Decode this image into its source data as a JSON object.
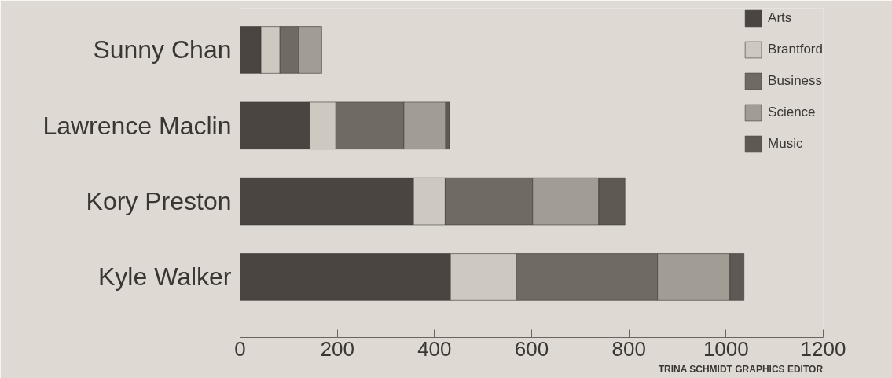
{
  "chart_data": {
    "type": "bar",
    "orientation": "horizontal",
    "stacked": true,
    "categories": [
      "Sunny Chan",
      "Lawrence Maclin",
      "Kory Preston",
      "Kyle Walker"
    ],
    "series": [
      {
        "name": "Arts",
        "color": "#4a4540",
        "values": [
          43,
          143,
          357,
          433
        ]
      },
      {
        "name": "Brantford",
        "color": "#cdc9c1",
        "values": [
          39,
          54,
          65,
          135
        ]
      },
      {
        "name": "Business",
        "color": "#6f6b63",
        "values": [
          39,
          140,
          180,
          291
        ]
      },
      {
        "name": "Science",
        "color": "#a19d95",
        "values": [
          47,
          86,
          136,
          149
        ]
      },
      {
        "name": "Music",
        "color": "#5e5a53",
        "values": [
          null,
          8,
          54,
          29
        ]
      }
    ],
    "xlim": [
      0,
      1200
    ],
    "xticks": [
      0,
      200,
      400,
      600,
      800,
      1000,
      1200
    ],
    "grid": false,
    "legend": "top right",
    "annotations": [
      "TRINA SCHMIDT GRAPHICS EDITOR"
    ]
  }
}
